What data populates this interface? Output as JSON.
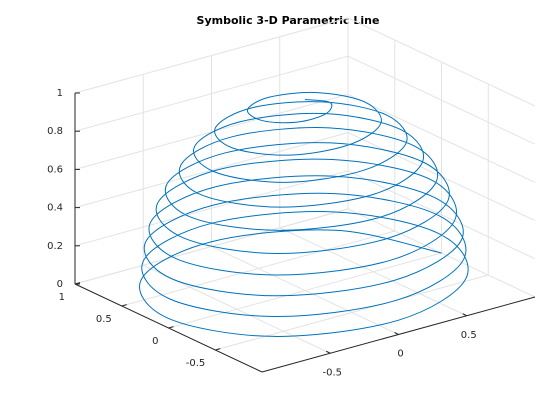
{
  "chart_data": {
    "type": "line3d",
    "title": "Symbolic 3-D Parametric Line",
    "color": "#0072bd",
    "grid": true,
    "xlim": [
      -1,
      1
    ],
    "ylim": [
      -1,
      1
    ],
    "zlim": [
      0,
      1
    ],
    "xticks": [
      -0.5,
      0,
      0.5
    ],
    "yticks": [
      -0.5,
      0,
      0.5,
      1
    ],
    "zticks": [
      0,
      0.2,
      0.4,
      0.6,
      0.8,
      1
    ],
    "x": [
      1,
      0.71,
      0,
      -0.71,
      -1,
      -0.71,
      0,
      0.7,
      0.99,
      0.7,
      0,
      -0.7,
      -0.99,
      -0.7,
      0,
      0.69,
      0.98,
      0.69,
      0,
      -0.69,
      -0.97,
      -0.68,
      0,
      0.68,
      0.95,
      0.67,
      0,
      -0.67,
      -0.94,
      -0.66,
      0,
      0.65,
      0.92,
      0.64,
      0,
      -0.64,
      -0.89,
      -0.63,
      0,
      0.62,
      0.87,
      0.61,
      0,
      -0.6,
      -0.84,
      -0.58,
      0,
      0.57,
      0.8,
      0.56,
      0,
      -0.54,
      -0.76,
      -0.53,
      0,
      0.51,
      0.71,
      0.5,
      0,
      -0.48,
      -0.66,
      -0.46,
      0,
      0.44,
      0.6,
      0.41,
      0,
      -0.39,
      -0.53,
      -0.36,
      0,
      0.33,
      0.44,
      0.29,
      0,
      -0.25,
      -0.31,
      -0.19,
      0,
      0.11,
      0
    ],
    "y": [
      0,
      0.71,
      1,
      0.71,
      0,
      -0.71,
      -1,
      -0.7,
      0,
      0.7,
      0.99,
      0.7,
      0,
      -0.7,
      -0.98,
      -0.69,
      0,
      0.69,
      0.97,
      0.69,
      0,
      -0.68,
      -0.96,
      -0.68,
      0,
      0.67,
      0.95,
      0.67,
      0,
      -0.66,
      -0.93,
      -0.65,
      0,
      0.64,
      0.91,
      0.64,
      0,
      -0.63,
      -0.88,
      -0.62,
      0,
      0.61,
      0.85,
      0.6,
      0,
      -0.58,
      -0.82,
      -0.57,
      0,
      0.56,
      0.78,
      0.54,
      0,
      -0.53,
      -0.74,
      -0.51,
      0,
      0.5,
      0.69,
      0.48,
      0,
      -0.46,
      -0.63,
      -0.44,
      0,
      0.41,
      0.57,
      0.39,
      0,
      -0.36,
      -0.48,
      -0.33,
      0,
      0.29,
      0.38,
      0.25,
      0,
      -0.19,
      -0.22,
      -0.11,
      0
    ],
    "z": [
      0,
      0.0125,
      0.025,
      0.0375,
      0.05,
      0.0625,
      0.075,
      0.0875,
      0.1,
      0.1125,
      0.125,
      0.1375,
      0.15,
      0.1625,
      0.175,
      0.1875,
      0.2,
      0.2125,
      0.225,
      0.2375,
      0.25,
      0.2625,
      0.275,
      0.2875,
      0.3,
      0.3125,
      0.325,
      0.3375,
      0.35,
      0.3625,
      0.375,
      0.3875,
      0.4,
      0.4125,
      0.425,
      0.4375,
      0.45,
      0.4625,
      0.475,
      0.4875,
      0.5,
      0.5125,
      0.525,
      0.5375,
      0.55,
      0.5625,
      0.575,
      0.5875,
      0.6,
      0.6125,
      0.625,
      0.6375,
      0.65,
      0.6625,
      0.675,
      0.6875,
      0.7,
      0.7125,
      0.725,
      0.7375,
      0.75,
      0.7625,
      0.775,
      0.7875,
      0.8,
      0.8125,
      0.825,
      0.8375,
      0.85,
      0.8625,
      0.875,
      0.8875,
      0.9,
      0.9125,
      0.925,
      0.9375,
      0.95,
      0.9625,
      0.975,
      0.9875,
      1
    ]
  }
}
